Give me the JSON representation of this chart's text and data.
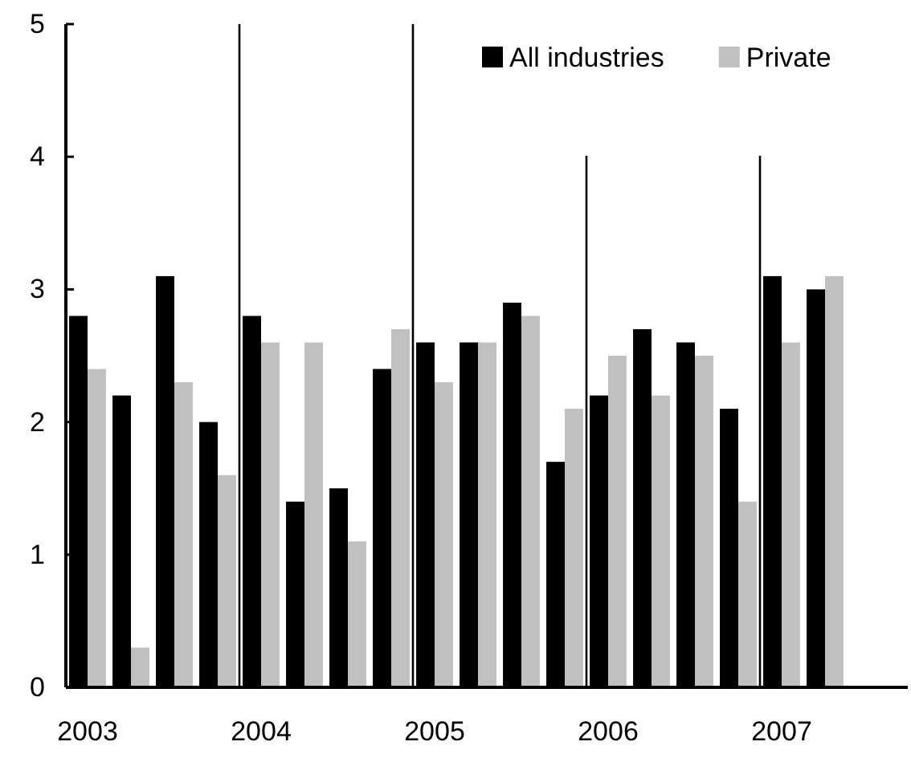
{
  "chart_data": {
    "type": "bar",
    "categories": [
      "2003",
      null,
      null,
      null,
      "2004",
      null,
      null,
      null,
      "2005",
      null,
      null,
      null,
      "2006",
      null,
      null,
      null,
      "2007",
      null
    ],
    "series": [
      {
        "name": "All industries",
        "color": "#000000",
        "values": [
          2.8,
          2.2,
          3.1,
          2.0,
          2.8,
          1.4,
          1.5,
          2.4,
          2.6,
          2.6,
          2.9,
          1.7,
          2.2,
          2.7,
          2.6,
          2.1,
          3.1,
          3.0
        ]
      },
      {
        "name": "Private",
        "color": "#c0c0c0",
        "values": [
          2.4,
          0.3,
          2.3,
          1.6,
          2.6,
          2.6,
          1.1,
          2.7,
          2.3,
          2.6,
          2.8,
          2.1,
          2.5,
          2.2,
          2.5,
          1.4,
          2.6,
          3.1
        ]
      }
    ],
    "ylim": [
      0,
      5
    ],
    "yticks": [
      0,
      1,
      2,
      3,
      4,
      5
    ],
    "grid": false,
    "legend": "top right"
  }
}
